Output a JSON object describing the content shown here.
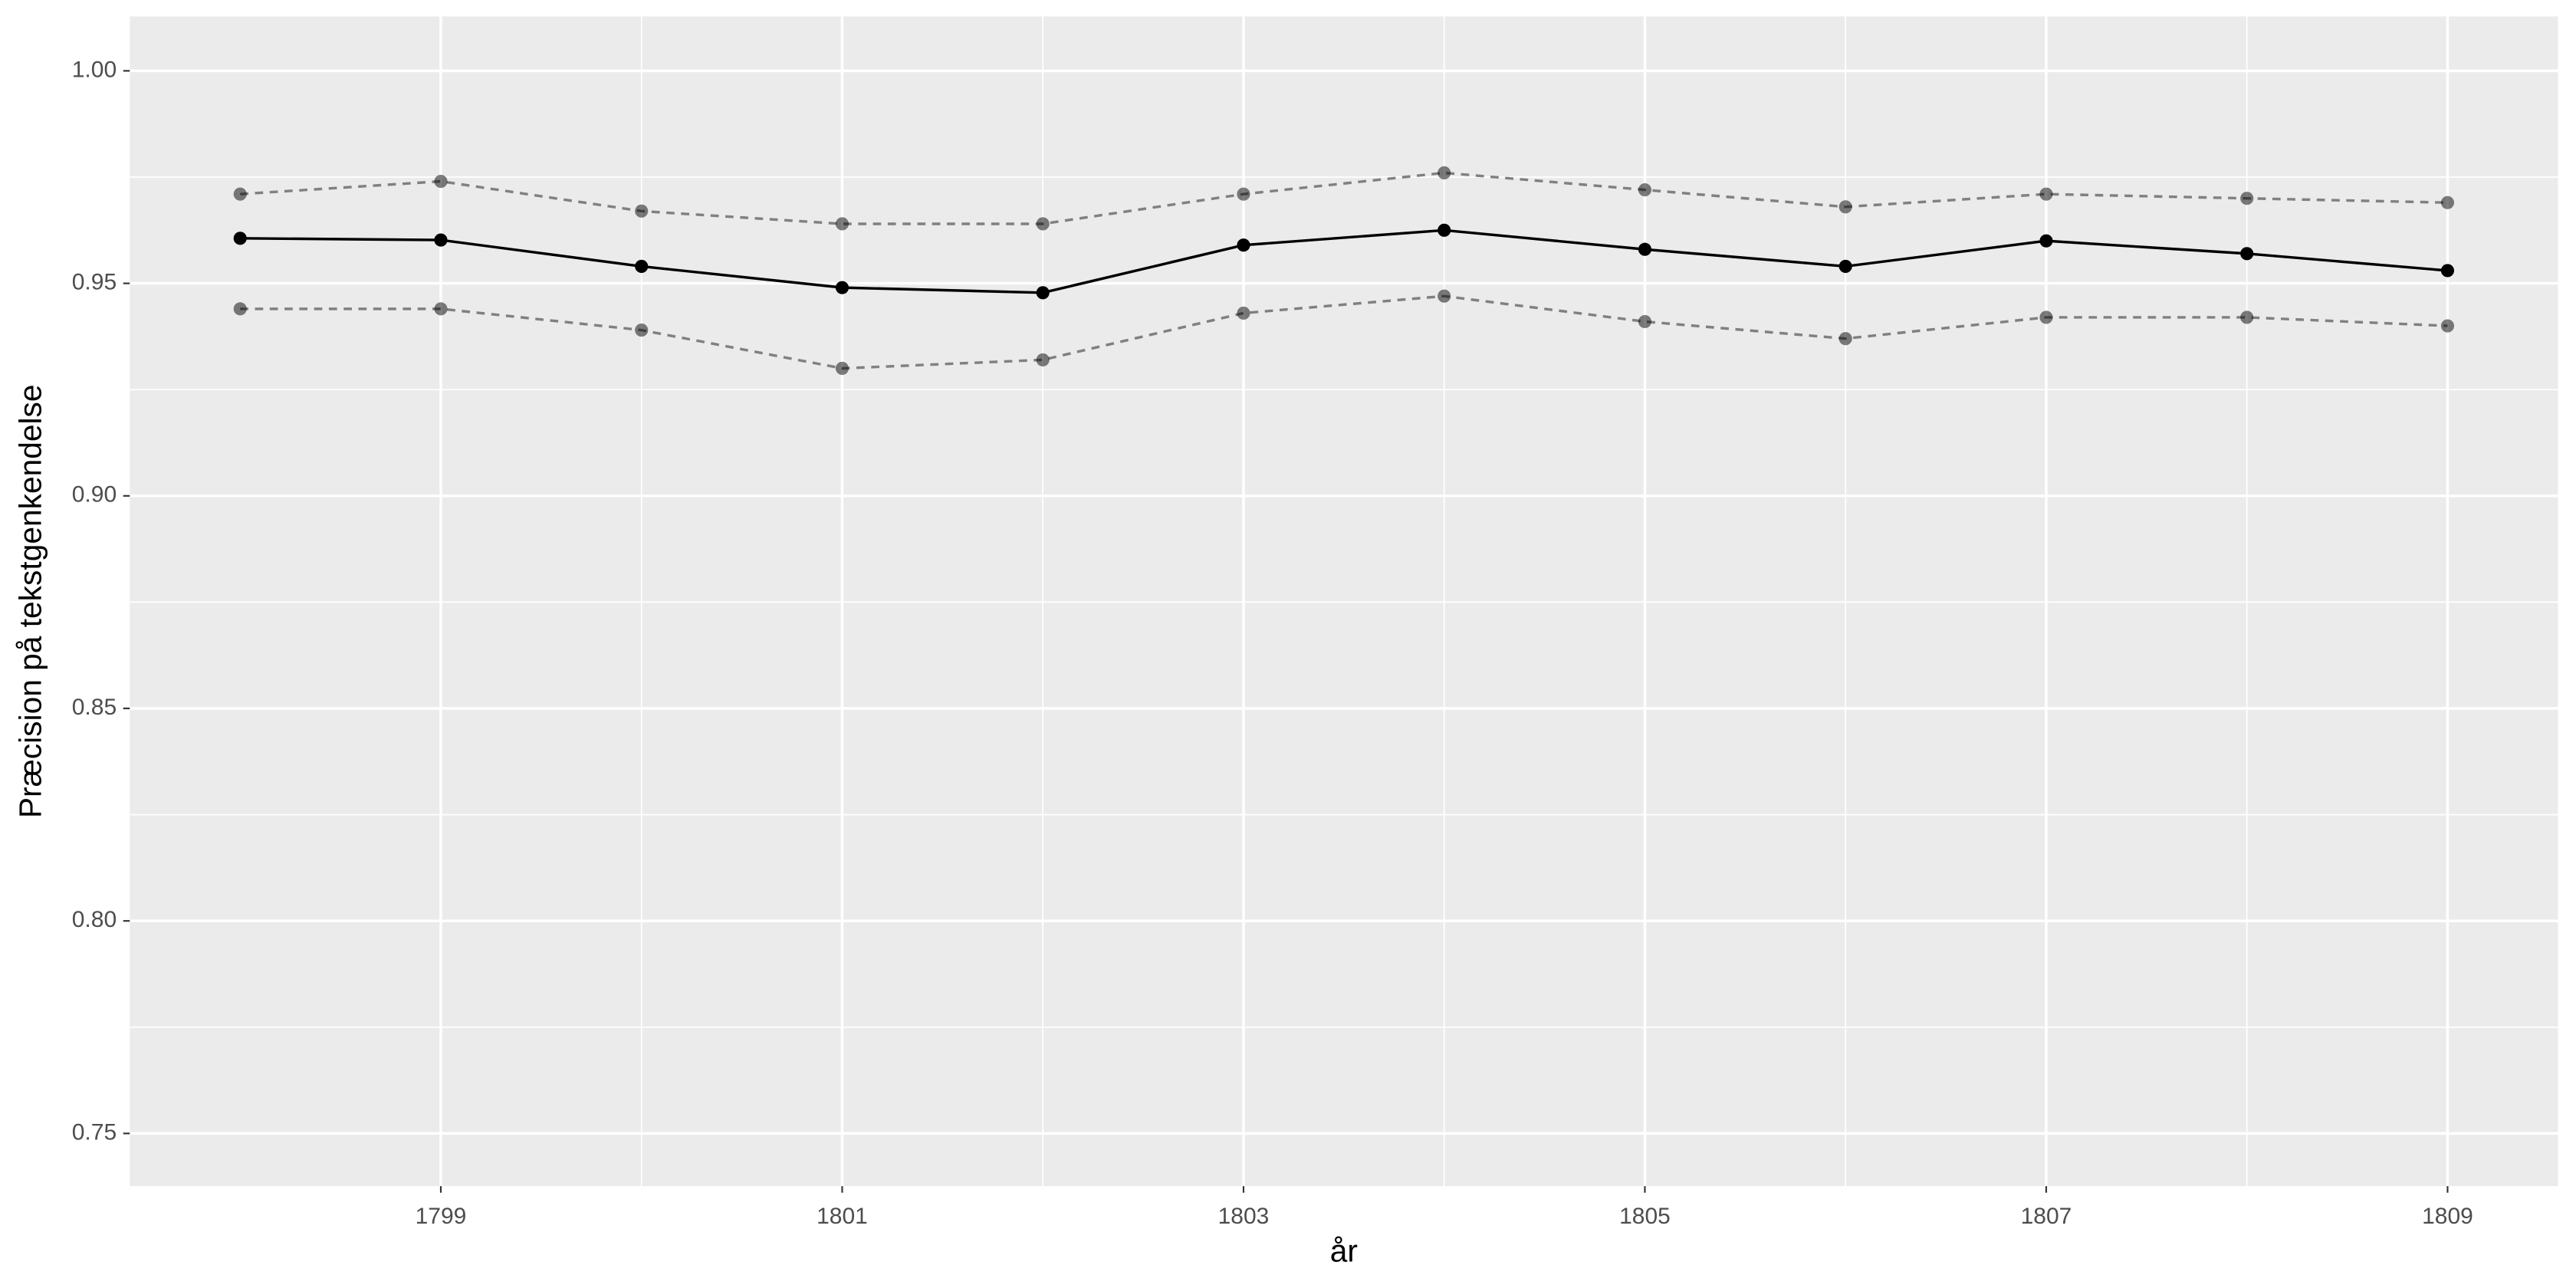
{
  "chart_data": {
    "type": "line",
    "x": [
      1798,
      1799,
      1800,
      1801,
      1802,
      1803,
      1804,
      1805,
      1806,
      1807,
      1808,
      1809
    ],
    "series": [
      {
        "color": "#808080",
        "dashed": true,
        "point_opacity": 0.5,
        "values": [
          0.971,
          0.974,
          0.967,
          0.964,
          0.964,
          0.971,
          0.976,
          0.972,
          0.968,
          0.971,
          0.97,
          0.969
        ]
      },
      {
        "color": "#808080",
        "dashed": true,
        "point_opacity": 0.5,
        "values": [
          0.944,
          0.944,
          0.939,
          0.93,
          0.932,
          0.943,
          0.947,
          0.941,
          0.937,
          0.942,
          0.942,
          0.94
        ]
      },
      {
        "color": "#000000",
        "dashed": false,
        "point_opacity": 1,
        "values": [
          0.9606,
          0.9602,
          0.954,
          0.949,
          0.9478,
          0.959,
          0.9625,
          0.958,
          0.954,
          0.96,
          0.957,
          0.953
        ]
      }
    ],
    "xlabel": "år",
    "ylabel": "Præcision på tekstgenkendelse",
    "xlim": [
      1797.45,
      1809.55
    ],
    "xticks": [
      1799,
      1801,
      1803,
      1805,
      1807,
      1809
    ],
    "ylim": [
      0.7376,
      1.0128
    ],
    "yticks": [
      {
        "value": 0.75,
        "label": "0.75"
      },
      {
        "value": 0.8,
        "label": "0.80"
      },
      {
        "value": 0.85,
        "label": "0.85"
      },
      {
        "value": 0.9,
        "label": "0.90"
      },
      {
        "value": 0.95,
        "label": "0.95"
      },
      {
        "value": 1.0,
        "label": "1.00"
      }
    ],
    "grid": true,
    "minor_grid": true,
    "panel_color": "#ebebeb"
  }
}
